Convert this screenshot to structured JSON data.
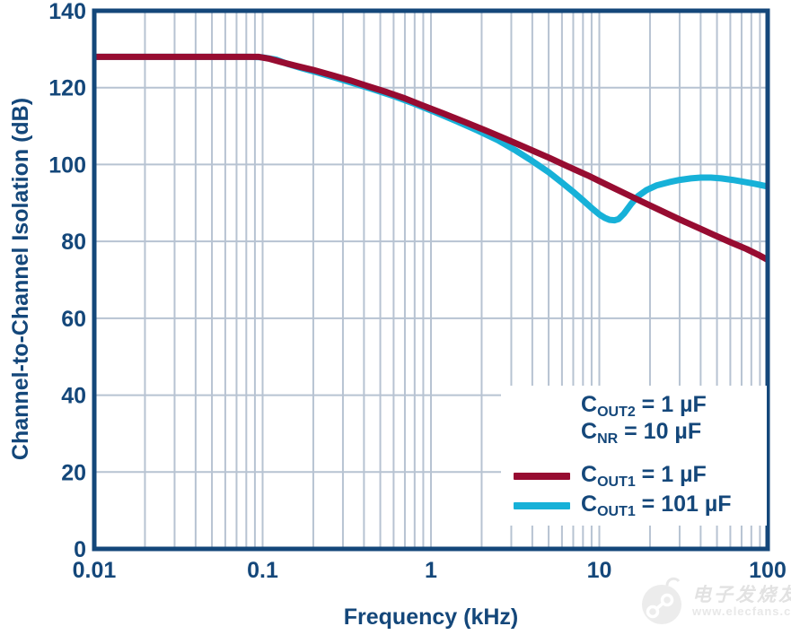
{
  "colors": {
    "navy": "#14477a",
    "maroon": "#970c31",
    "cyan": "#17b1d8",
    "grid": "#b7c3d2",
    "frame": "#14477a",
    "legend_bg": "#ffffff",
    "watermark_gray": "#e2e2e2"
  },
  "legend": {
    "annotations": [
      {
        "sym": "C",
        "sub": "OUT2",
        "rest": " = 1 µF"
      },
      {
        "sym": "C",
        "sub": "NR",
        "rest": " = 10 µF"
      }
    ],
    "entries": [
      {
        "sym": "C",
        "sub": "OUT1",
        "rest": " = 1 µF",
        "color": "#970c31"
      },
      {
        "sym": "C",
        "sub": "OUT1",
        "rest": " = 101 µF",
        "color": "#17b1d8"
      }
    ]
  },
  "watermark": {
    "cn_text": "电子发烧友",
    "url_text": "www.elecfans.com"
  },
  "chart_data": {
    "type": "line",
    "title": "",
    "xlabel": "Frequency (kHz)",
    "ylabel": "Channel-to-Channel Isolation (dB)",
    "x_scale": "log",
    "xlim": [
      0.01,
      100
    ],
    "ylim": [
      0,
      140
    ],
    "x_ticks": [
      0.01,
      0.1,
      1,
      10,
      100
    ],
    "x_tick_labels": [
      "0.01",
      "0.1",
      "1",
      "10",
      "100"
    ],
    "y_ticks": [
      0,
      20,
      40,
      60,
      80,
      100,
      120,
      140
    ],
    "y_tick_labels": [
      "0",
      "20",
      "40",
      "60",
      "80",
      "100",
      "120",
      "140"
    ],
    "grid": true,
    "legend_position": "lower-right",
    "annotations": [
      "C_OUT2 = 1 µF",
      "C_NR = 10 µF"
    ],
    "series": [
      {
        "name": "C_OUT1 = 101 µF",
        "color": "#17b1d8",
        "points": [
          [
            0.01,
            128
          ],
          [
            0.03,
            128
          ],
          [
            0.06,
            128
          ],
          [
            0.085,
            128
          ],
          [
            0.1,
            127.9
          ],
          [
            0.12,
            127.3
          ],
          [
            0.14,
            126.2
          ],
          [
            0.17,
            125.1
          ],
          [
            0.21,
            124.0
          ],
          [
            0.27,
            122.6
          ],
          [
            0.35,
            121.1
          ],
          [
            0.45,
            119.6
          ],
          [
            0.6,
            117.8
          ],
          [
            0.8,
            115.8
          ],
          [
            1.05,
            113.7
          ],
          [
            1.4,
            111.4
          ],
          [
            1.9,
            108.8
          ],
          [
            2.5,
            106.3
          ],
          [
            3.2,
            103.6
          ],
          [
            4,
            100.9
          ],
          [
            5,
            98.0
          ],
          [
            6,
            95.3
          ],
          [
            7,
            92.9
          ],
          [
            8,
            90.7
          ],
          [
            9,
            88.7
          ],
          [
            10,
            87.0
          ],
          [
            10.8,
            86.1
          ],
          [
            11.5,
            85.6
          ],
          [
            12.3,
            85.5
          ],
          [
            13,
            85.8
          ],
          [
            14,
            87.2
          ],
          [
            15.5,
            89.8
          ],
          [
            17,
            91.8
          ],
          [
            19,
            93.3
          ],
          [
            22,
            94.6
          ],
          [
            26,
            95.4
          ],
          [
            30,
            96.0
          ],
          [
            35,
            96.4
          ],
          [
            40,
            96.6
          ],
          [
            46,
            96.6
          ],
          [
            53,
            96.4
          ],
          [
            62,
            96.0
          ],
          [
            72,
            95.5
          ],
          [
            84,
            95.0
          ],
          [
            100,
            94.3
          ]
        ]
      },
      {
        "name": "C_OUT1 = 1 µF",
        "color": "#970c31",
        "points": [
          [
            0.01,
            128
          ],
          [
            0.02,
            128
          ],
          [
            0.04,
            128
          ],
          [
            0.06,
            128
          ],
          [
            0.08,
            128
          ],
          [
            0.095,
            128
          ],
          [
            0.11,
            127.5
          ],
          [
            0.13,
            126.6
          ],
          [
            0.16,
            125.6
          ],
          [
            0.2,
            124.6
          ],
          [
            0.26,
            123.2
          ],
          [
            0.33,
            121.9
          ],
          [
            0.42,
            120.4
          ],
          [
            0.55,
            118.8
          ],
          [
            0.7,
            117.2
          ],
          [
            0.9,
            115.3
          ],
          [
            1.2,
            113.2
          ],
          [
            1.6,
            111.0
          ],
          [
            2.1,
            108.9
          ],
          [
            2.8,
            106.6
          ],
          [
            3.7,
            104.3
          ],
          [
            5,
            101.8
          ],
          [
            6.5,
            99.5
          ],
          [
            8.5,
            97.2
          ],
          [
            11,
            94.8
          ],
          [
            14,
            92.6
          ],
          [
            18,
            90.3
          ],
          [
            23,
            88.1
          ],
          [
            30,
            85.7
          ],
          [
            38,
            83.7
          ],
          [
            48,
            81.7
          ],
          [
            60,
            79.8
          ],
          [
            75,
            78.0
          ],
          [
            88,
            76.5
          ],
          [
            100,
            75.2
          ]
        ]
      }
    ]
  }
}
